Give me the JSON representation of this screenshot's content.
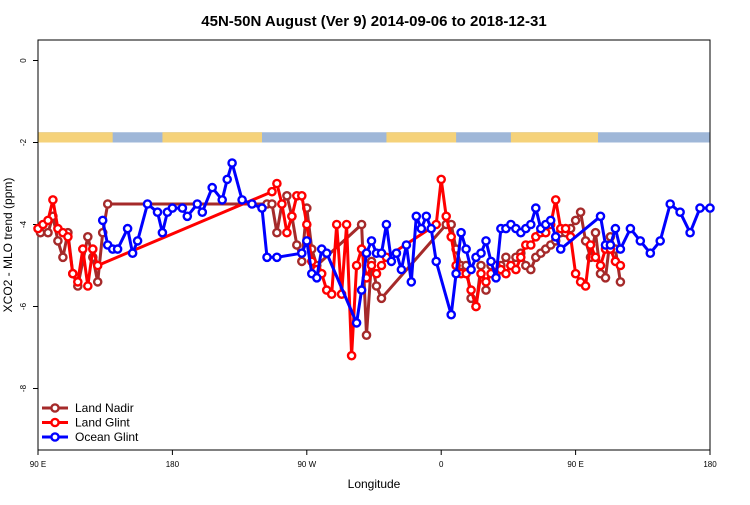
{
  "chart_data": {
    "type": "line",
    "title": "45N-50N August (Ver 9)   2014-09-06 to 2018-12-31",
    "xlabel": "Longitude",
    "ylabel": "XCO2 - MLO trend (ppm)",
    "xlim": [
      -90,
      180
    ],
    "ylim": [
      -9.5,
      0.5
    ],
    "x_ticks": [
      {
        "value": -90,
        "label": "90 E"
      },
      {
        "value": -36,
        "label": "180"
      },
      {
        "value": 18,
        "label": "90 W"
      },
      {
        "value": 72,
        "label": "0"
      },
      {
        "value": 126,
        "label": "90 E"
      },
      {
        "value": 180,
        "label": "180"
      }
    ],
    "y_ticks": [
      {
        "value": 0,
        "label": "0"
      },
      {
        "value": -2,
        "label": "-2"
      },
      {
        "value": -4,
        "label": "-4"
      },
      {
        "value": -6,
        "label": "-6"
      },
      {
        "value": -8,
        "label": "-8"
      }
    ],
    "grid": false,
    "legend_position": "bottom-left",
    "land_band": {
      "ocean_color": "#9fb7d8",
      "land_color": "#f5d27a",
      "land_segments": [
        [
          -90,
          -60
        ],
        [
          -40,
          0
        ],
        [
          50,
          78
        ],
        [
          100,
          135
        ]
      ]
    },
    "series": [
      {
        "name": "Land Nadir",
        "color": "#a52a2a",
        "x": [
          -89,
          -86,
          -84,
          -82,
          -80,
          -78,
          -76,
          -74,
          -70,
          -68,
          -66,
          -64,
          -62,
          2,
          4,
          6,
          8,
          10,
          12,
          14,
          16,
          18,
          20,
          22,
          40,
          42,
          44,
          46,
          48,
          74,
          76,
          78,
          80,
          82,
          84,
          86,
          88,
          90,
          92,
          94,
          96,
          98,
          100,
          102,
          104,
          106,
          108,
          110,
          112,
          114,
          116,
          118,
          120,
          122,
          124,
          126,
          128,
          130,
          132,
          134,
          136,
          138,
          140,
          142,
          144
        ],
        "y": [
          -4.2,
          -4.2,
          -3.8,
          -4.4,
          -4.8,
          -4.2,
          -5.2,
          -5.5,
          -4.3,
          -4.8,
          -5.4,
          -4.2,
          -3.5,
          -3.5,
          -3.5,
          -4.2,
          -3.5,
          -3.3,
          -3.8,
          -4.5,
          -4.9,
          -3.6,
          -4.6,
          -5.0,
          -4.0,
          -6.7,
          -4.9,
          -5.5,
          -5.8,
          -4.0,
          -4.0,
          -4.6,
          -5.0,
          -5.0,
          -5.8,
          -6.0,
          -5.0,
          -5.6,
          -5.0,
          -5.2,
          -5.0,
          -4.8,
          -5.0,
          -4.8,
          -4.7,
          -5.0,
          -5.1,
          -4.8,
          -4.7,
          -4.6,
          -4.5,
          -4.4,
          -4.2,
          -4.2,
          -4.1,
          -3.9,
          -3.7,
          -4.4,
          -4.8,
          -4.2,
          -5.2,
          -5.3,
          -4.3,
          -4.6,
          -5.4
        ],
        "style": "line-with-hollow-markers"
      },
      {
        "name": "Land Glint",
        "color": "#ff0000",
        "x": [
          -90,
          -88,
          -86,
          -84,
          -82,
          -80,
          -78,
          -76,
          -74,
          -72,
          -70,
          -68,
          -66,
          4,
          6,
          8,
          10,
          12,
          14,
          16,
          18,
          20,
          22,
          24,
          26,
          28,
          30,
          32,
          34,
          36,
          38,
          40,
          42,
          44,
          46,
          48,
          50,
          70,
          72,
          74,
          76,
          78,
          80,
          82,
          84,
          86,
          88,
          90,
          92,
          94,
          96,
          98,
          100,
          102,
          104,
          106,
          108,
          110,
          112,
          114,
          116,
          118,
          120,
          122,
          124,
          126,
          128,
          130,
          132,
          134,
          136,
          138,
          140,
          142,
          144
        ],
        "y": [
          -4.1,
          -4.0,
          -3.9,
          -3.4,
          -4.1,
          -4.2,
          -4.3,
          -5.2,
          -5.4,
          -4.6,
          -5.5,
          -4.6,
          -5.0,
          -3.2,
          -3.0,
          -3.5,
          -4.2,
          -3.8,
          -3.3,
          -3.3,
          -4.0,
          -4.9,
          -5.1,
          -5.2,
          -5.6,
          -5.7,
          -4.0,
          -5.7,
          -4.0,
          -7.2,
          -5.0,
          -4.6,
          -5.3,
          -5.0,
          -5.2,
          -5.0,
          -4.8,
          -4.0,
          -2.9,
          -3.8,
          -4.3,
          -5.0,
          -5.2,
          -5.2,
          -5.6,
          -6.0,
          -5.2,
          -5.4,
          -5.2,
          -5.0,
          -5.1,
          -5.2,
          -5.0,
          -5.1,
          -4.8,
          -4.5,
          -4.5,
          -4.3,
          -4.2,
          -4.2,
          -4.0,
          -3.4,
          -4.1,
          -4.1,
          -4.3,
          -5.2,
          -5.4,
          -5.5,
          -4.5,
          -4.8,
          -5.0,
          -4.6,
          -4.6,
          -4.9,
          -5.0
        ],
        "style": "line-with-hollow-markers"
      },
      {
        "name": "Ocean Glint",
        "color": "#0000ff",
        "x": [
          -64,
          -62,
          -60,
          -58,
          -54,
          -52,
          -50,
          -46,
          -42,
          -40,
          -38,
          -36,
          -32,
          -30,
          -26,
          -24,
          -20,
          -16,
          -14,
          -12,
          -8,
          -4,
          0,
          2,
          6,
          16,
          18,
          20,
          22,
          24,
          26,
          38,
          40,
          42,
          44,
          46,
          48,
          50,
          52,
          54,
          56,
          58,
          60,
          62,
          64,
          66,
          68,
          70,
          76,
          78,
          80,
          82,
          84,
          86,
          88,
          90,
          92,
          94,
          96,
          98,
          100,
          102,
          104,
          106,
          108,
          110,
          112,
          114,
          116,
          118,
          120,
          136,
          138,
          140,
          142,
          144,
          148,
          152,
          156,
          160,
          164,
          168,
          172,
          176,
          180
        ],
        "y": [
          -3.9,
          -4.5,
          -4.6,
          -4.6,
          -4.1,
          -4.7,
          -4.4,
          -3.5,
          -3.7,
          -4.2,
          -3.7,
          -3.6,
          -3.6,
          -3.8,
          -3.5,
          -3.7,
          -3.1,
          -3.4,
          -2.9,
          -2.5,
          -3.4,
          -3.5,
          -3.6,
          -4.8,
          -4.8,
          -4.7,
          -4.4,
          -5.2,
          -5.3,
          -4.6,
          -4.7,
          -6.4,
          -5.6,
          -4.7,
          -4.4,
          -4.7,
          -4.7,
          -4.0,
          -4.9,
          -4.7,
          -5.1,
          -4.5,
          -5.4,
          -3.8,
          -4.1,
          -3.8,
          -4.1,
          -4.9,
          -6.2,
          -5.2,
          -4.2,
          -4.6,
          -5.1,
          -4.8,
          -4.7,
          -4.4,
          -4.9,
          -5.3,
          -4.1,
          -4.1,
          -4.0,
          -4.1,
          -4.2,
          -4.1,
          -4.0,
          -3.6,
          -4.1,
          -4.0,
          -3.9,
          -4.3,
          -4.6,
          -3.8,
          -4.5,
          -4.5,
          -4.1,
          -4.6,
          -4.1,
          -4.4,
          -4.7,
          -4.4,
          -3.5,
          -3.7,
          -4.2,
          -3.6,
          -3.6
        ],
        "style": "line-with-hollow-markers"
      }
    ]
  }
}
